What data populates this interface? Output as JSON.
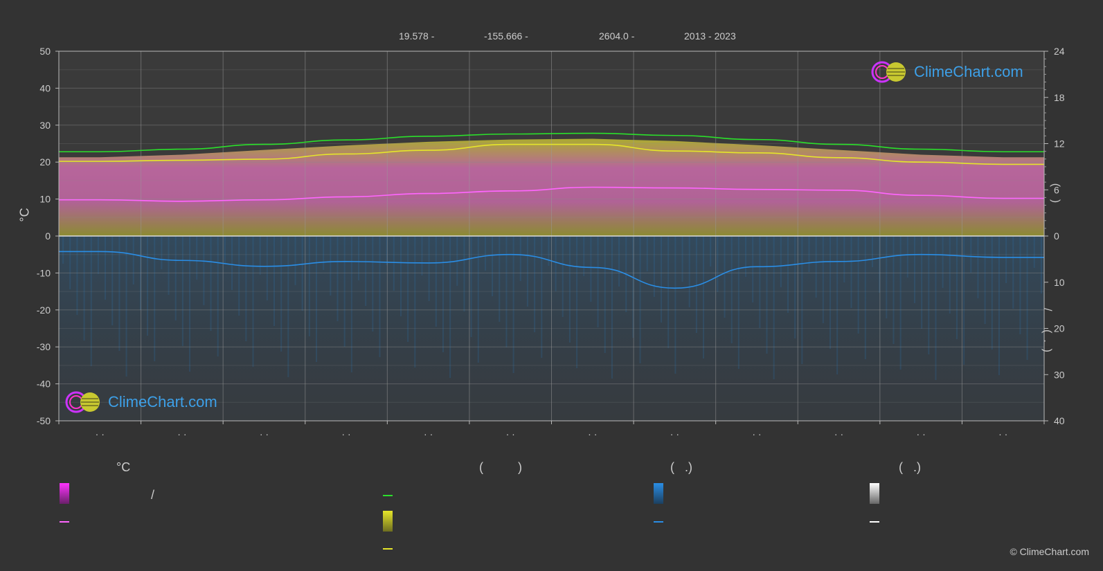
{
  "header": {
    "lat": "19.578 -",
    "lon": "-155.666 -",
    "elev": "2604.0 -",
    "years": "2013 - 2023"
  },
  "left_axis_title": "°C",
  "right_axis_title_upper": "(    )",
  "right_axis_title_lower": "/      (  .  )",
  "logo_text": "ClimeChart.com",
  "copyright": "© ClimeChart.com",
  "legend": {
    "col1_heading": "°C",
    "col2_heading": "(          )",
    "col3_heading": "(   .)",
    "col4_heading": "(   .)",
    "row1_slash": "/"
  },
  "colors": {
    "background": "#333333",
    "sunshine_line": "#2be02b",
    "daylight_line": "#e6e62a",
    "temp_line": "#ff66ff",
    "rain_line": "#2a8ee6",
    "snow_line": "#ffffff"
  },
  "chart_data": {
    "type": "line",
    "months": 12,
    "x_tick_labels": [
      "· ·",
      "· ·",
      "· ·",
      "· ·",
      "· ·",
      "· ·",
      "· ·",
      "· ·",
      "· ·",
      "· ·",
      "· ·",
      "· ·"
    ],
    "y_left": {
      "min": -50,
      "max": 50,
      "ticks": [
        50,
        40,
        30,
        20,
        10,
        0,
        -10,
        -20,
        -30,
        -40,
        -50
      ]
    },
    "y_right_upper": {
      "min": 0,
      "max": 24,
      "ticks": [
        24,
        18,
        12,
        6,
        0
      ]
    },
    "y_right_lower": {
      "min": 0,
      "max": 40,
      "ticks": [
        0,
        10,
        20,
        30,
        40
      ]
    },
    "series": [
      {
        "key": "sunshine",
        "values": [
          22.8,
          23.5,
          24.8,
          26.0,
          27.0,
          27.6,
          27.8,
          27.2,
          26.1,
          24.8,
          23.5,
          22.8
        ]
      },
      {
        "key": "daylight",
        "values": [
          20.2,
          20.5,
          20.8,
          22.2,
          23.2,
          24.8,
          24.8,
          23.0,
          22.5,
          21.2,
          20.0,
          19.4
        ]
      },
      {
        "key": "temp_mean",
        "values": [
          9.8,
          9.4,
          9.8,
          10.6,
          11.5,
          12.2,
          13.2,
          13.0,
          12.6,
          12.4,
          11.0,
          10.2
        ]
      },
      {
        "key": "rain",
        "values": [
          4.2,
          6.6,
          8.2,
          6.9,
          7.3,
          5.0,
          8.5,
          14.1,
          8.3,
          6.9,
          5.0,
          5.8
        ]
      }
    ]
  }
}
